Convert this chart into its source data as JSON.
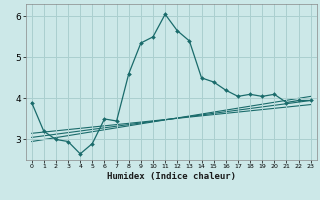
{
  "xlabel": "Humidex (Indice chaleur)",
  "background_color": "#cce8e8",
  "grid_color": "#aacfcf",
  "line_color": "#1a6b6b",
  "xlim": [
    -0.5,
    23.5
  ],
  "ylim": [
    2.5,
    6.3
  ],
  "yticks": [
    3,
    4,
    5,
    6
  ],
  "xticks": [
    0,
    1,
    2,
    3,
    4,
    5,
    6,
    7,
    8,
    9,
    10,
    11,
    12,
    13,
    14,
    15,
    16,
    17,
    18,
    19,
    20,
    21,
    22,
    23
  ],
  "series1": {
    "x": [
      0,
      1,
      2,
      3,
      4,
      5,
      6,
      7,
      8,
      9,
      10,
      11,
      12,
      13,
      14,
      15,
      16,
      17,
      18,
      19,
      20,
      21,
      22,
      23
    ],
    "y": [
      3.9,
      3.2,
      3.0,
      2.95,
      2.65,
      2.9,
      3.5,
      3.45,
      4.6,
      5.35,
      5.5,
      6.05,
      5.65,
      5.4,
      4.5,
      4.4,
      4.2,
      4.05,
      4.1,
      4.05,
      4.1,
      3.9,
      3.95,
      3.95
    ]
  },
  "line2": {
    "x": [
      0,
      23
    ],
    "y": [
      2.95,
      4.05
    ]
  },
  "line3": {
    "x": [
      0,
      23
    ],
    "y": [
      3.05,
      3.95
    ]
  },
  "line4": {
    "x": [
      0,
      23
    ],
    "y": [
      3.15,
      3.85
    ]
  }
}
